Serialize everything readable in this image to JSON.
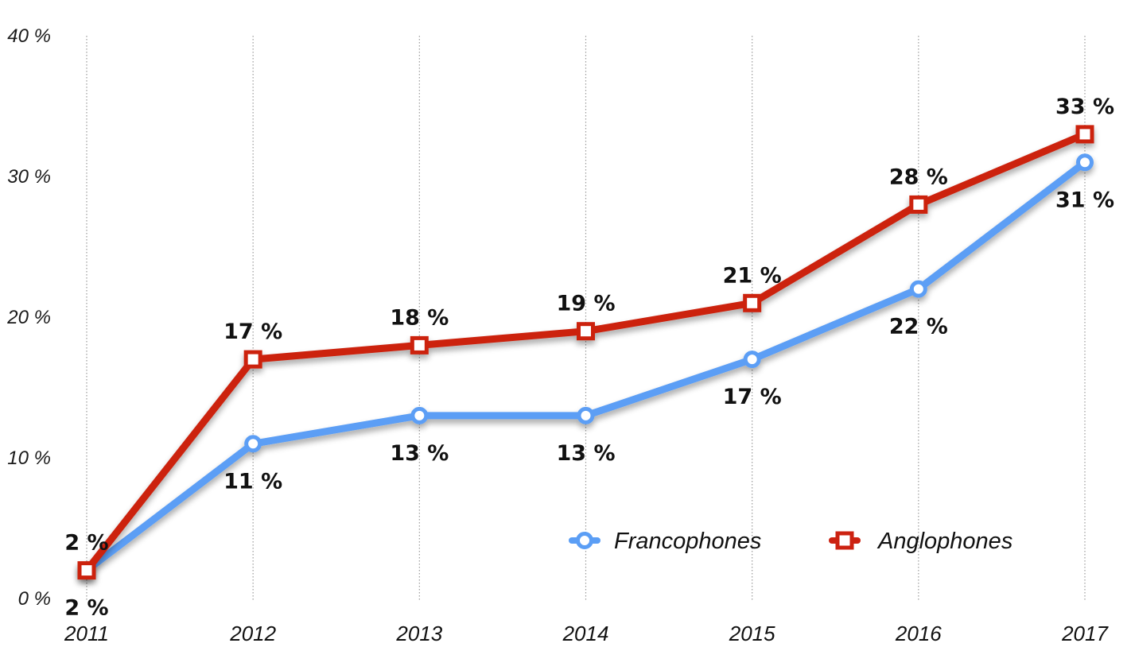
{
  "chart_data": {
    "type": "line",
    "x": [
      "2011",
      "2012",
      "2013",
      "2014",
      "2015",
      "2016",
      "2017"
    ],
    "ylim": [
      0,
      40
    ],
    "yticks": [
      0,
      10,
      20,
      30,
      40
    ],
    "ytick_labels": [
      "0 %",
      "10 %",
      "20 %",
      "30 %",
      "40 %"
    ],
    "grid": "vertical dotted lines",
    "legend": "bottom-right",
    "series": [
      {
        "name": "Francophones",
        "color": "#5B9EF5",
        "marker": "circle",
        "values": [
          2,
          11,
          13,
          13,
          17,
          22,
          31
        ],
        "labels": [
          "2 %",
          "11 %",
          "13 %",
          "13 %",
          "17 %",
          "22 %",
          "31 %"
        ],
        "label_position": "below"
      },
      {
        "name": "Anglophones",
        "color": "#CC2211",
        "marker": "square",
        "values": [
          2,
          17,
          18,
          19,
          21,
          28,
          33
        ],
        "labels": [
          "2 %",
          "17 %",
          "18 %",
          "19 %",
          "21 %",
          "28 %",
          "33 %"
        ],
        "label_position": "above"
      }
    ]
  }
}
